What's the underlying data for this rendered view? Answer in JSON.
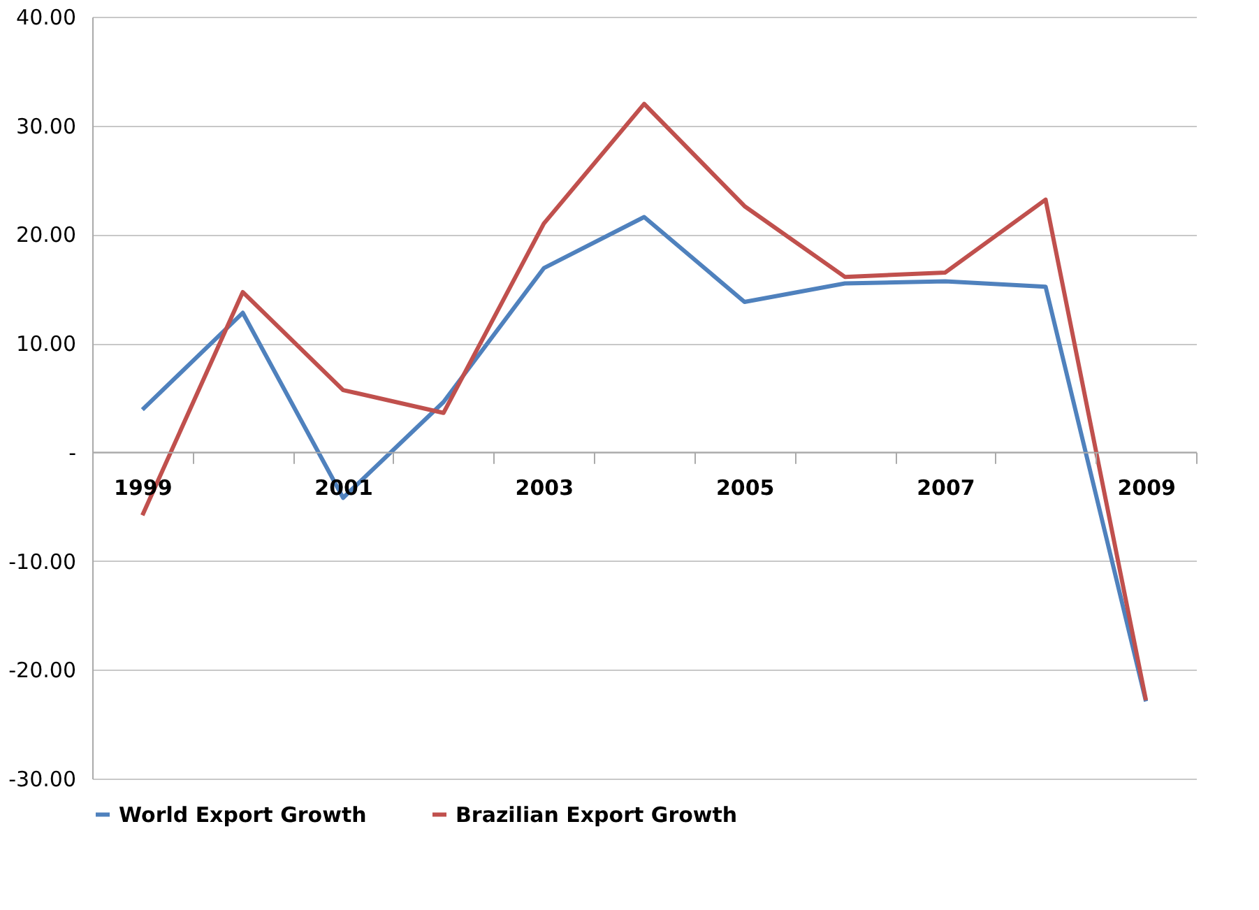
{
  "chart_data": {
    "type": "line",
    "categories": [
      "1999",
      null,
      "2001",
      null,
      "2003",
      null,
      "2005",
      null,
      "2007",
      null,
      "2009"
    ],
    "series": [
      {
        "name": "World Export Growth",
        "color": "#4f81bd",
        "values": [
          3.9,
          12.8,
          -4.2,
          4.6,
          16.9,
          21.6,
          13.8,
          15.5,
          15.7,
          15.2,
          -22.9
        ]
      },
      {
        "name": "Brazilian Export Growth",
        "color": "#c0504d",
        "values": [
          -5.8,
          14.7,
          5.7,
          3.6,
          21.0,
          32.0,
          22.6,
          16.1,
          16.5,
          23.2,
          -22.8
        ]
      }
    ],
    "ylim": [
      -30,
      40
    ],
    "yticks": [
      {
        "value": -30,
        "label": "-30.00"
      },
      {
        "value": -20,
        "label": "-20.00"
      },
      {
        "value": -10,
        "label": "-10.00"
      },
      {
        "value": 0,
        "label": "-"
      },
      {
        "value": 10,
        "label": "10.00"
      },
      {
        "value": 20,
        "label": "20.00"
      },
      {
        "value": 30,
        "label": "30.00"
      },
      {
        "value": 40,
        "label": "40.00"
      }
    ],
    "grid": "y",
    "legend": "bottom",
    "marker": "none",
    "line_style": "solid"
  }
}
